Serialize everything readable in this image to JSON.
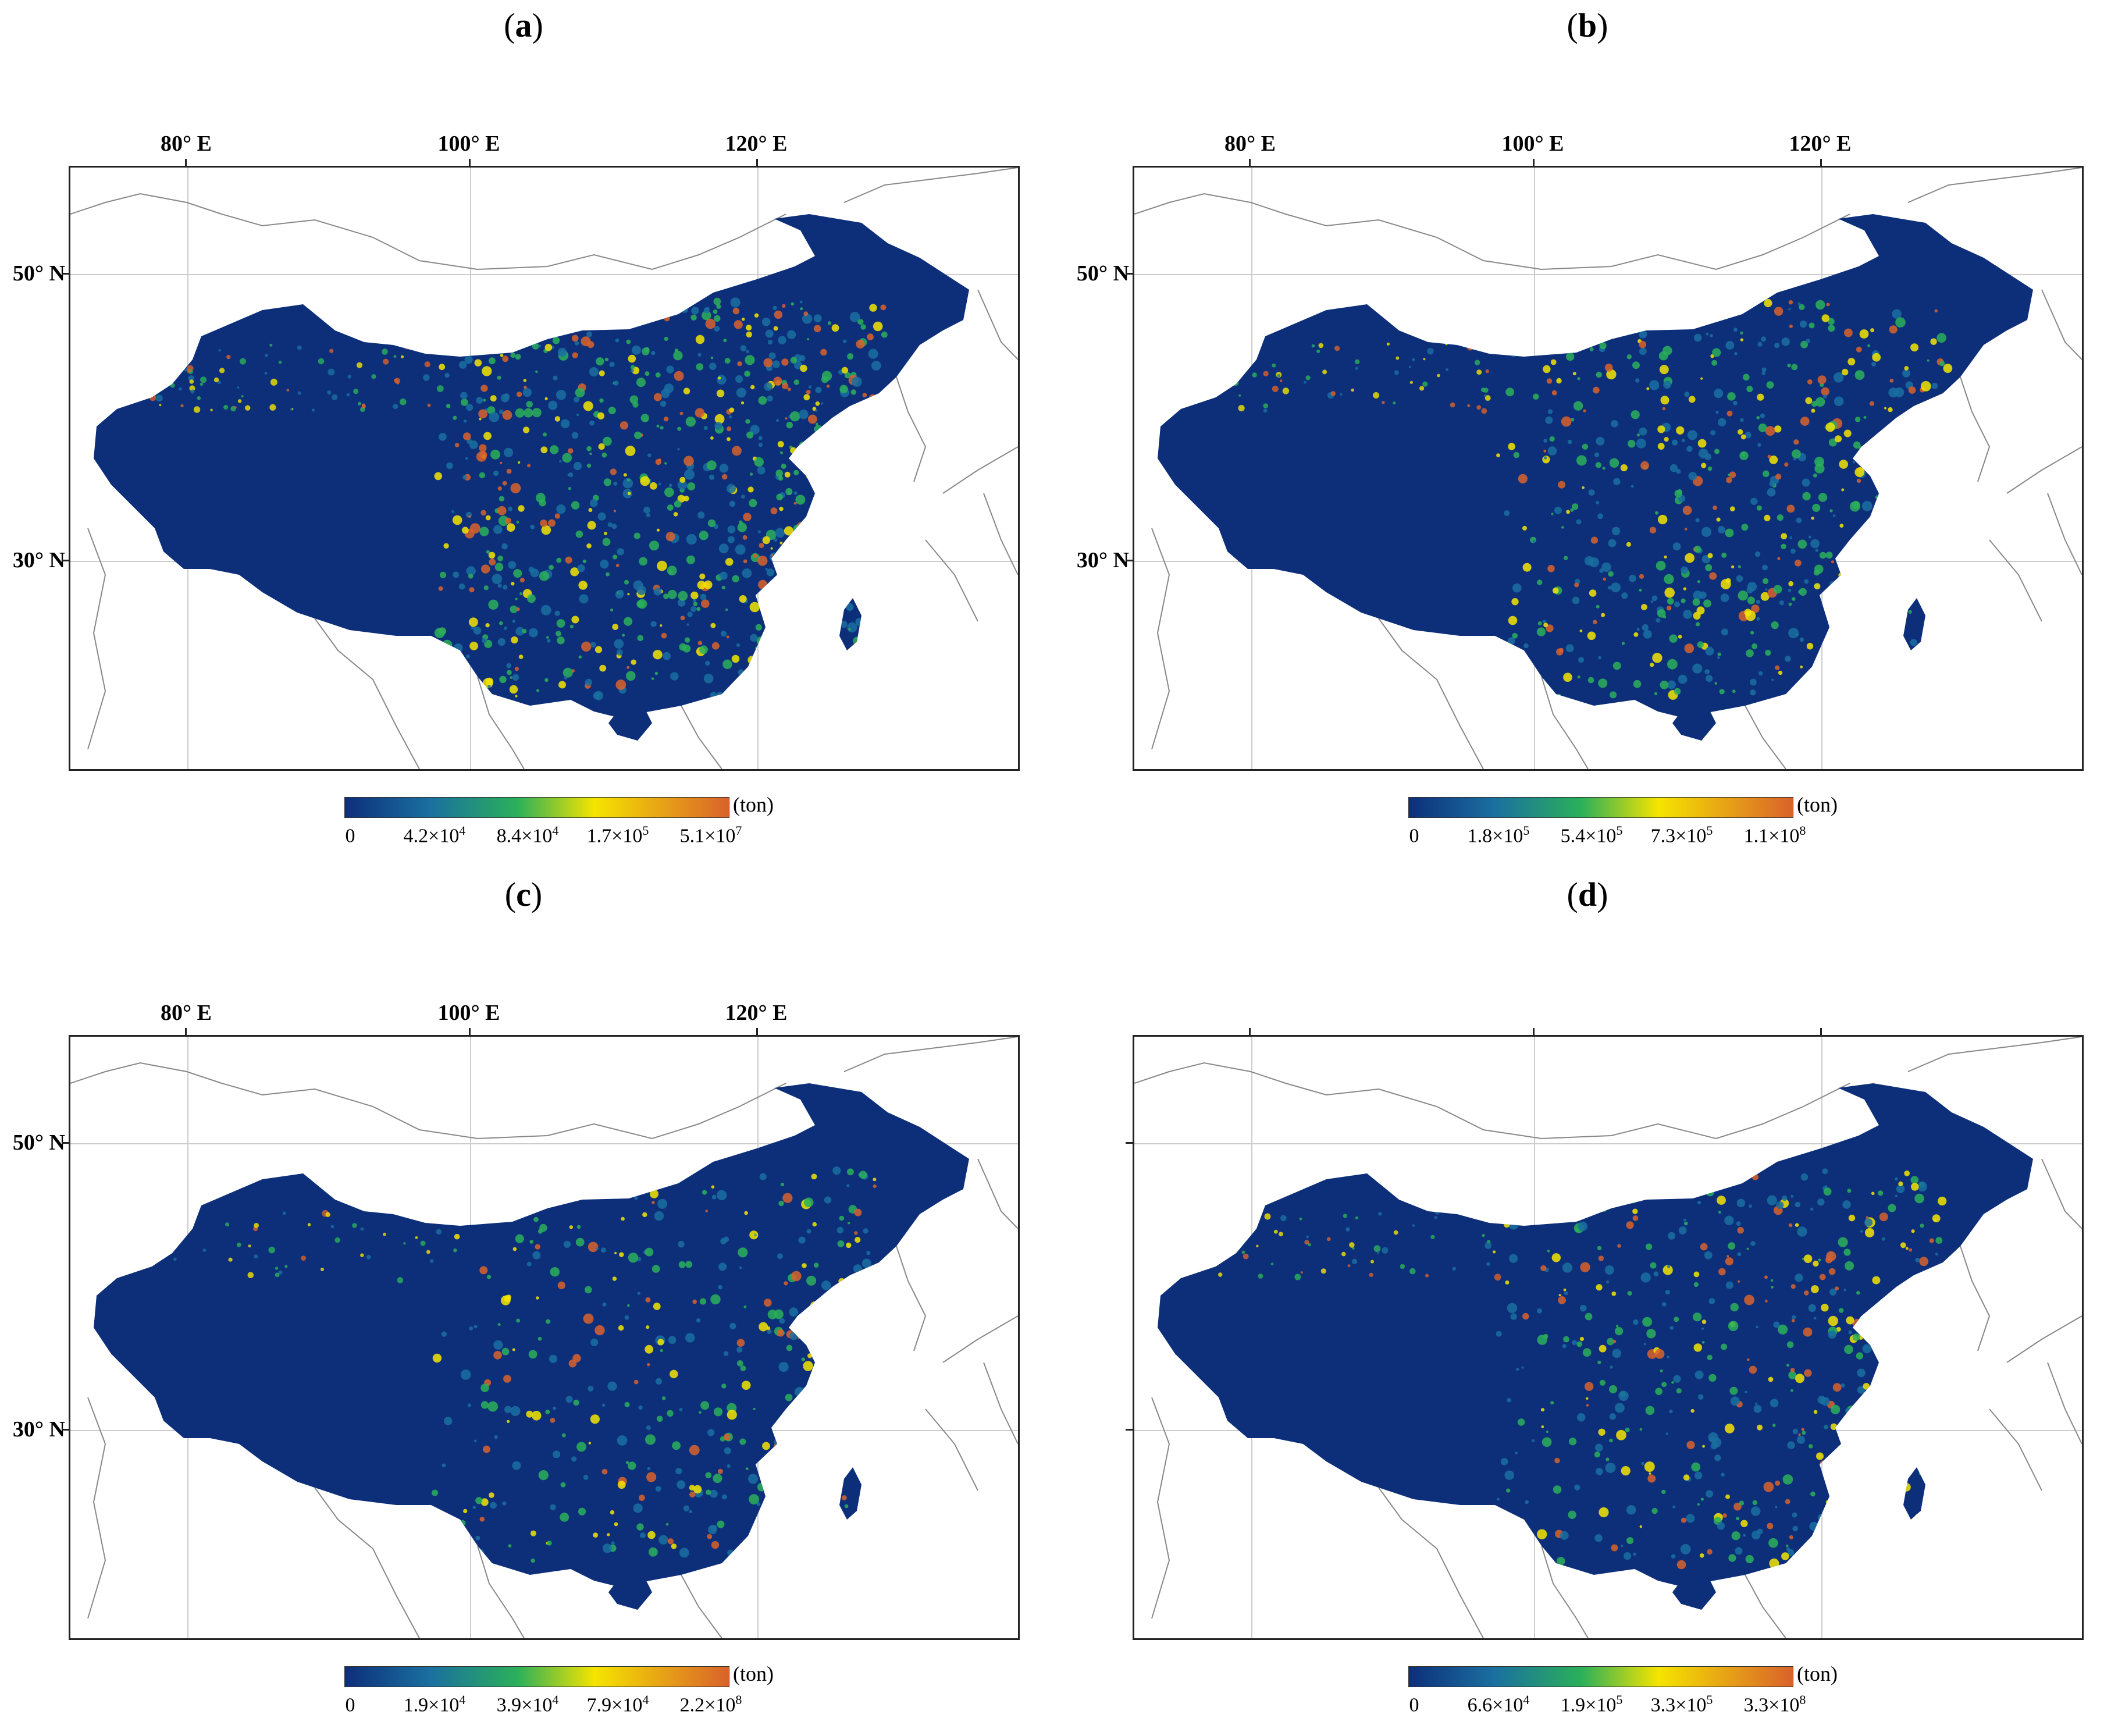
{
  "figure": {
    "panels": [
      {
        "id": "a",
        "label": "a",
        "show_lon_labels": true,
        "lon_labels": [
          "80° E",
          "100° E",
          "120° E"
        ],
        "lat_labels": [
          "50° N",
          "30° N"
        ],
        "intensity": 0.95,
        "colorbar": {
          "unit": "(ton)",
          "ticks": [
            {
              "base": "0",
              "exp": ""
            },
            {
              "base": "4.2×10",
              "exp": "4"
            },
            {
              "base": "8.4×10",
              "exp": "4"
            },
            {
              "base": "1.7×10",
              "exp": "5"
            },
            {
              "base": "5.1×10",
              "exp": "7"
            }
          ]
        }
      },
      {
        "id": "b",
        "label": "b",
        "show_lon_labels": true,
        "lon_labels": [
          "80° E",
          "100° E",
          "120° E"
        ],
        "lat_labels": [
          "50° N",
          "30° N"
        ],
        "intensity": 0.7,
        "colorbar": {
          "unit": "(ton)",
          "ticks": [
            {
              "base": "0",
              "exp": ""
            },
            {
              "base": "1.8×10",
              "exp": "5"
            },
            {
              "base": "5.4×10",
              "exp": "5"
            },
            {
              "base": "7.3×10",
              "exp": "5"
            },
            {
              "base": "1.1×10",
              "exp": "8"
            }
          ]
        }
      },
      {
        "id": "c",
        "label": "c",
        "show_lon_labels": true,
        "lon_labels": [
          "80° E",
          "100° E",
          "120° E"
        ],
        "lat_labels": [
          "50° N",
          "30° N"
        ],
        "intensity": 0.45,
        "colorbar": {
          "unit": "(ton)",
          "ticks": [
            {
              "base": "0",
              "exp": ""
            },
            {
              "base": "1.9×10",
              "exp": "4"
            },
            {
              "base": "3.9×10",
              "exp": "4"
            },
            {
              "base": "7.9×10",
              "exp": "4"
            },
            {
              "base": "2.2×10",
              "exp": "8"
            }
          ]
        }
      },
      {
        "id": "d",
        "label": "d",
        "show_lon_labels": false,
        "lon_labels": [
          "",
          "",
          ""
        ],
        "lat_labels": [
          "",
          ""
        ],
        "intensity": 0.6,
        "colorbar": {
          "unit": "(ton)",
          "ticks": [
            {
              "base": "0",
              "exp": ""
            },
            {
              "base": "6.6×10",
              "exp": "4"
            },
            {
              "base": "1.9×10",
              "exp": "5"
            },
            {
              "base": "3.3×10",
              "exp": "5"
            },
            {
              "base": "3.3×10",
              "exp": "8"
            }
          ]
        }
      }
    ],
    "colors": {
      "background_land": "#0d2f7a",
      "low": "#1a6fa0",
      "mid": "#2bb05a",
      "high": "#f5e400",
      "top": "#d9622b",
      "boundary": "#888888",
      "gridline": "#cccccc"
    }
  }
}
